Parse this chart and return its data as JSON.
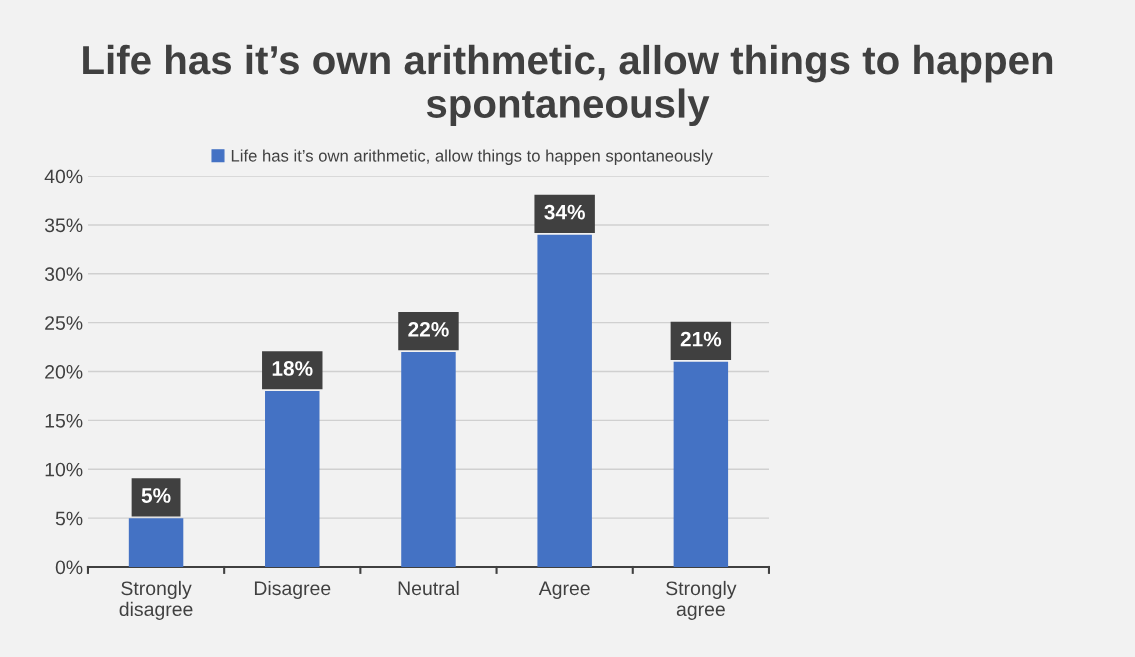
{
  "chart_data": {
    "type": "bar",
    "title": "Life has it’s own arithmetic, allow things to happen spontaneously",
    "categories": [
      "Strongly\ndisagree",
      "Disagree",
      "Neutral",
      "Agree",
      "Strongly\nagree"
    ],
    "series": [
      {
        "name": "Life has it’s own arithmetic, allow things to happen spontaneously",
        "color": "#4472c4",
        "values": [
          5,
          18,
          22,
          34,
          21
        ],
        "value_labels": [
          "5%",
          "18%",
          "22%",
          "34%",
          "21%"
        ]
      }
    ],
    "ylim": [
      0,
      40
    ],
    "yticks": [
      {
        "value": 0,
        "label": "0%"
      },
      {
        "value": 5,
        "label": "5%"
      },
      {
        "value": 10,
        "label": "10%"
      },
      {
        "value": 15,
        "label": "15%"
      },
      {
        "value": 20,
        "label": "20%"
      },
      {
        "value": 25,
        "label": "25%"
      },
      {
        "value": 30,
        "label": "30%"
      },
      {
        "value": 35,
        "label": "35%"
      },
      {
        "value": 40,
        "label": "40%"
      }
    ],
    "grid": "y",
    "legend": "top"
  }
}
